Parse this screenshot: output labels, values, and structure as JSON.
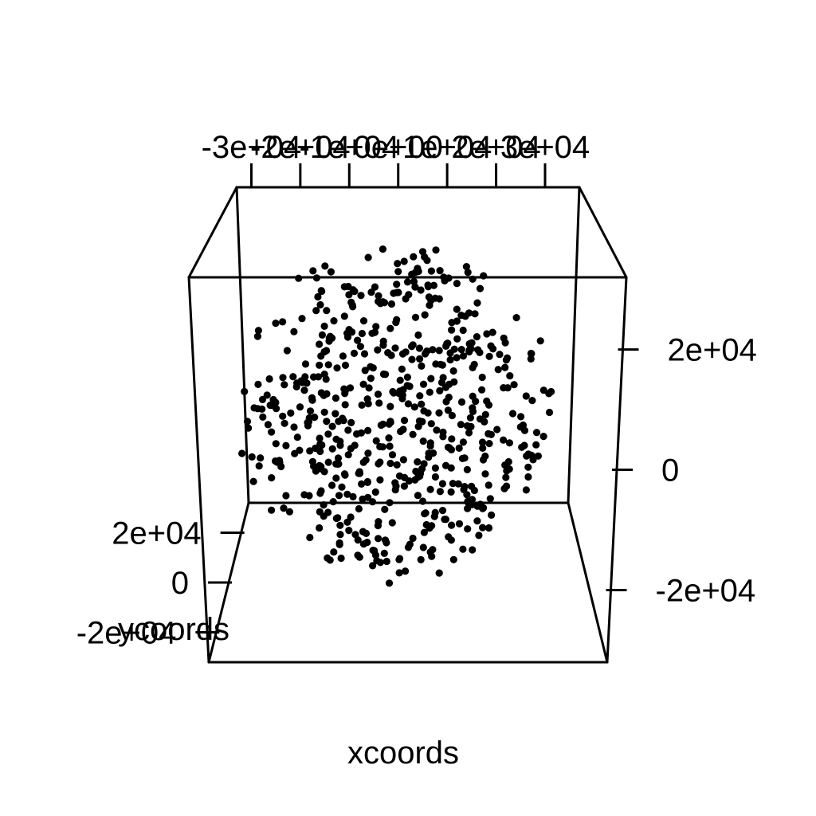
{
  "chart_data": {
    "type": "scatter",
    "projection": "3d-box",
    "title": "",
    "xlabel": "xcoords",
    "ylabel": "ycoords",
    "zlabel": "",
    "ticks": {
      "x": [
        {
          "value": -30000,
          "label": "-3e+04"
        },
        {
          "value": -20000,
          "label": "-2e+04"
        },
        {
          "value": -10000,
          "label": "-1e+04"
        },
        {
          "value": 0,
          "label": "0e+00"
        },
        {
          "value": 10000,
          "label": "1e+04"
        },
        {
          "value": 20000,
          "label": "2e+04"
        },
        {
          "value": 30000,
          "label": "3e+04"
        }
      ],
      "y": [
        {
          "value": 20000,
          "label": "2e+04"
        },
        {
          "value": 0,
          "label": "0"
        },
        {
          "value": -20000,
          "label": "-2e+04"
        }
      ],
      "z": [
        {
          "value": 20000,
          "label": "2e+04"
        },
        {
          "value": 0,
          "label": "0"
        },
        {
          "value": -20000,
          "label": "-2e+04"
        }
      ]
    },
    "xlim": [
      -33000,
      37000
    ],
    "ylim": [
      -32000,
      32000
    ],
    "zlim": [
      -32000,
      32000
    ],
    "grid": false,
    "legend": "none",
    "point_color": "#000000",
    "point_count": 600,
    "point_distribution": "random points filling a sphere of radius about 30000 centred at the origin",
    "seed": 20240607
  }
}
